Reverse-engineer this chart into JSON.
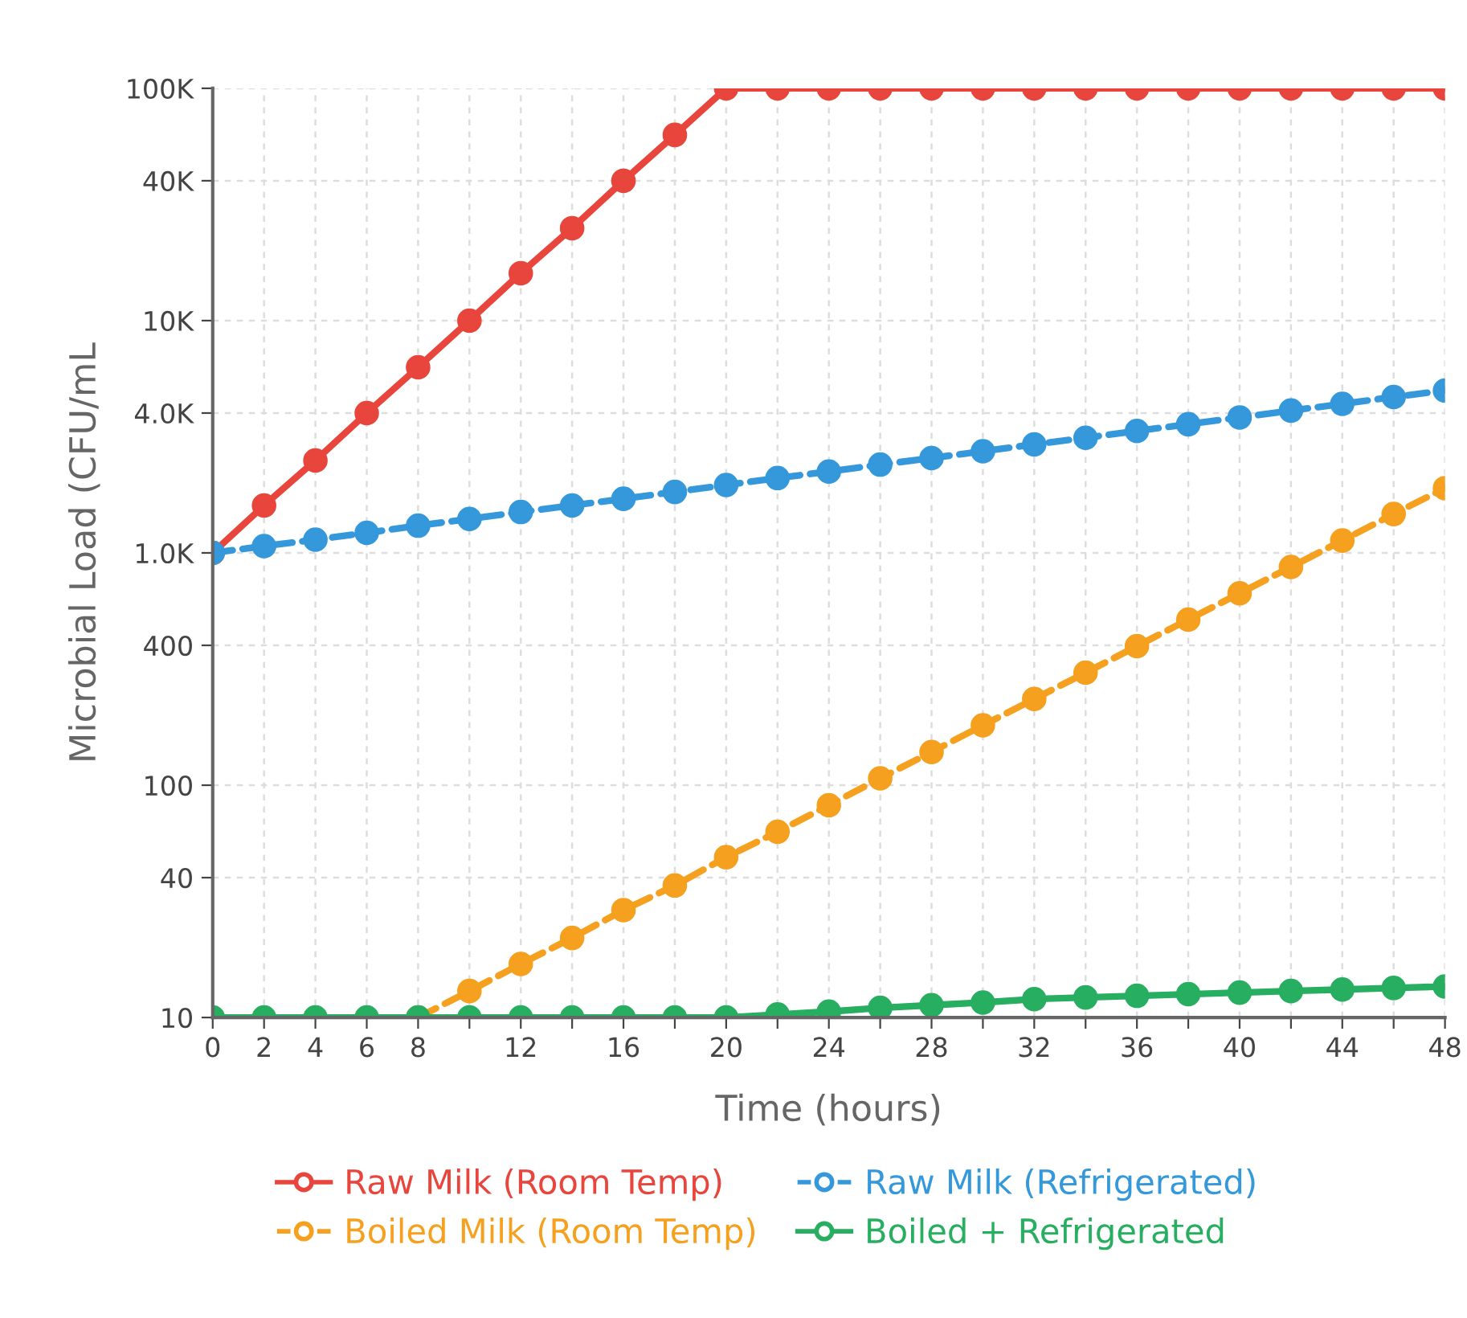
{
  "chart_data": {
    "type": "line",
    "xlabel": "Time (hours)",
    "ylabel": "Microbial Load (CFU/mL",
    "log": "y",
    "grid": true,
    "legend": "bottom",
    "marker": "circle",
    "x": [
      0,
      2,
      4,
      6,
      8,
      10,
      12,
      14,
      16,
      18,
      20,
      22,
      24,
      26,
      28,
      30,
      32,
      34,
      36,
      38,
      40,
      42,
      44,
      46,
      48
    ],
    "xlim": [
      0,
      48
    ],
    "xticks": [
      0,
      2,
      4,
      6,
      8,
      {
        "value": 10,
        "label": null
      },
      12,
      {
        "value": 14,
        "label": null
      },
      16,
      {
        "value": 18,
        "label": null
      },
      20,
      {
        "value": 22,
        "label": null
      },
      24,
      {
        "value": 26,
        "label": null
      },
      28,
      {
        "value": 30,
        "label": null
      },
      32,
      {
        "value": 34,
        "label": null
      },
      36,
      {
        "value": 38,
        "label": null
      },
      40,
      {
        "value": 42,
        "label": null
      },
      44,
      {
        "value": 46,
        "label": null
      },
      48
    ],
    "ylim": [
      10,
      100000
    ],
    "yticks": [
      10,
      40,
      100,
      400,
      {
        "value": 1000,
        "label": "1.0K"
      },
      {
        "value": 4000,
        "label": "4.0K"
      },
      {
        "value": 10000,
        "label": "10K"
      },
      {
        "value": 40000,
        "label": "40K"
      },
      {
        "value": 100000,
        "label": "100K"
      }
    ],
    "series": [
      {
        "name": "Raw Milk (Room Temp)",
        "color": "#e8453c",
        "line_style": "solid",
        "values": [
          1000,
          1600,
          2500,
          4000,
          6300,
          10000,
          16000,
          25000,
          40000,
          63000,
          100000,
          100000,
          100000,
          100000,
          100000,
          100000,
          100000,
          100000,
          100000,
          100000,
          100000,
          100000,
          100000,
          100000,
          100000
        ]
      },
      {
        "name": "Boiled Milk (Room Temp)",
        "color": "#f5a01e",
        "line_style": "dashed",
        "values": [
          null,
          null,
          null,
          null,
          10,
          13,
          17,
          22,
          29,
          37,
          49,
          63,
          82,
          107,
          139,
          181,
          235,
          305,
          397,
          516,
          670,
          870,
          1130,
          1470,
          1900
        ]
      },
      {
        "name": "Raw Milk (Refrigerated)",
        "color": "#3498db",
        "line_style": "dashed",
        "values": [
          1000,
          1070,
          1140,
          1220,
          1310,
          1400,
          1500,
          1600,
          1710,
          1830,
          1960,
          2100,
          2240,
          2400,
          2560,
          2740,
          2930,
          3130,
          3350,
          3580,
          3830,
          4100,
          4380,
          4690,
          5000
        ]
      },
      {
        "name": "Boiled + Refrigerated",
        "color": "#27ae60",
        "line_style": "solid",
        "values": [
          10,
          10,
          10,
          10,
          10,
          10,
          10,
          10,
          10,
          10,
          10,
          10.3,
          10.6,
          11,
          11.3,
          11.6,
          12,
          12.2,
          12.4,
          12.6,
          12.8,
          13,
          13.2,
          13.4,
          13.6
        ]
      }
    ]
  }
}
